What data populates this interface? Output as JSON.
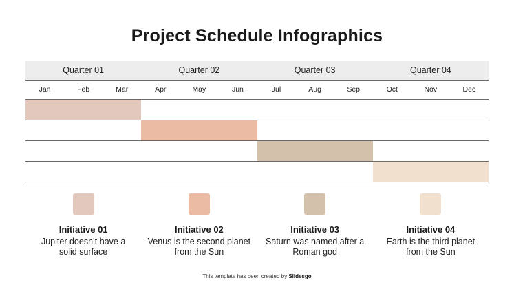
{
  "title": "Project Schedule Infographics",
  "quarters": [
    "Quarter 01",
    "Quarter 02",
    "Quarter 03",
    "Quarter 04"
  ],
  "months": [
    "Jan",
    "Feb",
    "Mar",
    "Apr",
    "May",
    "Jun",
    "Jul",
    "Aug",
    "Sep",
    "Oct",
    "Nov",
    "Dec"
  ],
  "initiatives": [
    {
      "title": "Initiative 01",
      "description": "Jupiter doesn’t have a solid surface",
      "color": "#e3c8bd",
      "start_month": "Jan",
      "end_month": "Mar"
    },
    {
      "title": "Initiative 02",
      "description": "Venus is the second planet from the Sun",
      "color": "#ebbca3",
      "start_month": "Apr",
      "end_month": "Jun"
    },
    {
      "title": "Initiative 03",
      "description": "Saturn was named after a Roman god",
      "color": "#d3c1ab",
      "start_month": "Jul",
      "end_month": "Sep"
    },
    {
      "title": "Initiative 04",
      "description": "Earth is the third planet from the Sun",
      "color": "#f1e0cd",
      "start_month": "Oct",
      "end_month": "Dec"
    }
  ],
  "credit": {
    "prefix": "This template has been created by",
    "brand": "Slidesgo"
  }
}
